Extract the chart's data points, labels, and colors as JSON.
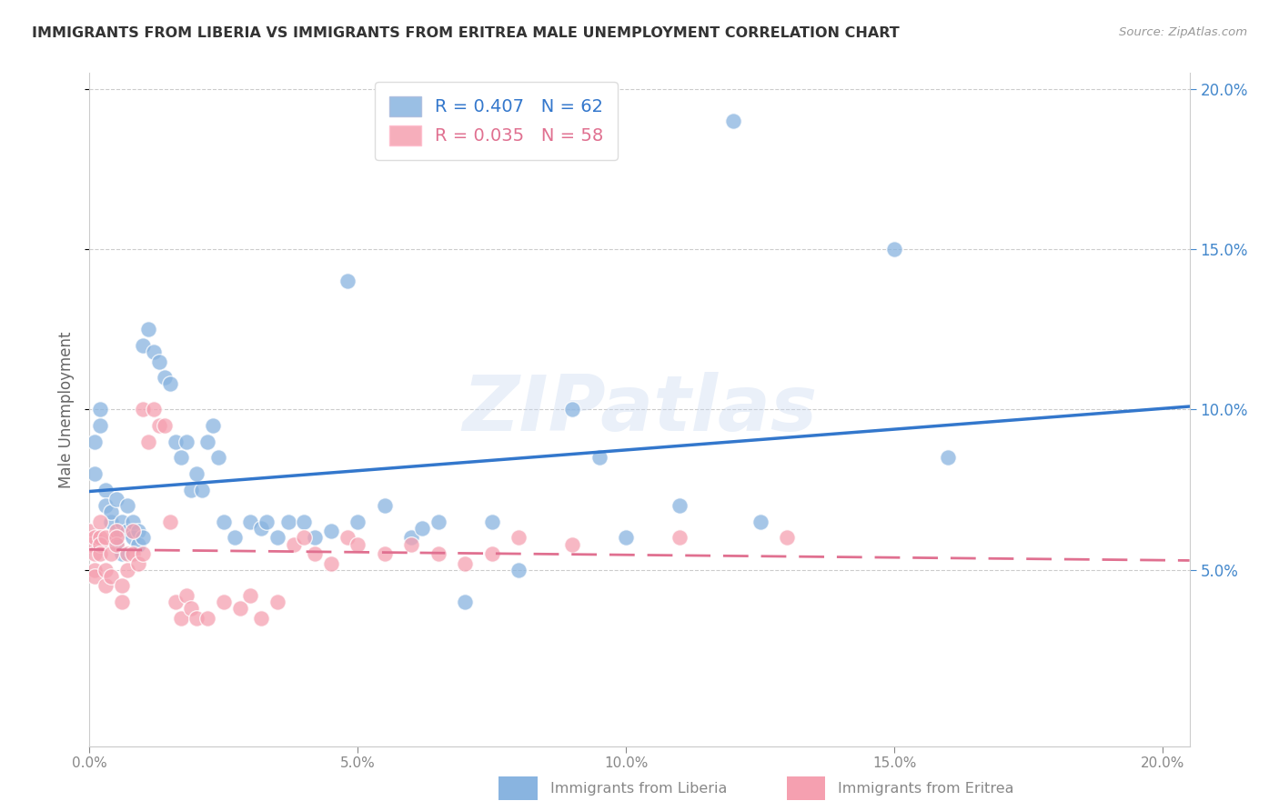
{
  "title": "IMMIGRANTS FROM LIBERIA VS IMMIGRANTS FROM ERITREA MALE UNEMPLOYMENT CORRELATION CHART",
  "source": "Source: ZipAtlas.com",
  "ylabel": "Male Unemployment",
  "xlim": [
    0.0,
    0.205
  ],
  "ylim": [
    -0.005,
    0.205
  ],
  "xtick_vals": [
    0.0,
    0.05,
    0.1,
    0.15,
    0.2
  ],
  "ytick_vals": [
    0.05,
    0.1,
    0.15,
    0.2
  ],
  "liberia_color": "#89B4E0",
  "liberia_line_color": "#3377CC",
  "eritrea_color": "#F5A0B0",
  "eritrea_line_color": "#E07090",
  "liberia_R": 0.407,
  "liberia_N": 62,
  "eritrea_R": 0.035,
  "eritrea_N": 58,
  "watermark": "ZIPatlas",
  "liberia_label": "Immigrants from Liberia",
  "eritrea_label": "Immigrants from Eritrea",
  "liberia_x": [
    0.001,
    0.001,
    0.002,
    0.002,
    0.003,
    0.003,
    0.004,
    0.004,
    0.005,
    0.005,
    0.005,
    0.006,
    0.006,
    0.007,
    0.007,
    0.008,
    0.008,
    0.009,
    0.009,
    0.01,
    0.01,
    0.011,
    0.012,
    0.013,
    0.014,
    0.015,
    0.016,
    0.017,
    0.018,
    0.019,
    0.02,
    0.021,
    0.022,
    0.023,
    0.024,
    0.025,
    0.027,
    0.03,
    0.032,
    0.033,
    0.035,
    0.037,
    0.04,
    0.042,
    0.045,
    0.048,
    0.05,
    0.055,
    0.06,
    0.062,
    0.065,
    0.07,
    0.075,
    0.08,
    0.09,
    0.095,
    0.1,
    0.11,
    0.12,
    0.125,
    0.15,
    0.16
  ],
  "liberia_y": [
    0.09,
    0.08,
    0.1,
    0.095,
    0.075,
    0.07,
    0.065,
    0.068,
    0.072,
    0.06,
    0.058,
    0.055,
    0.065,
    0.062,
    0.07,
    0.06,
    0.065,
    0.062,
    0.058,
    0.06,
    0.12,
    0.125,
    0.118,
    0.115,
    0.11,
    0.108,
    0.09,
    0.085,
    0.09,
    0.075,
    0.08,
    0.075,
    0.09,
    0.095,
    0.085,
    0.065,
    0.06,
    0.065,
    0.063,
    0.065,
    0.06,
    0.065,
    0.065,
    0.06,
    0.062,
    0.14,
    0.065,
    0.07,
    0.06,
    0.063,
    0.065,
    0.04,
    0.065,
    0.05,
    0.1,
    0.085,
    0.06,
    0.07,
    0.19,
    0.065,
    0.15,
    0.085
  ],
  "eritrea_x": [
    0.0,
    0.0,
    0.001,
    0.001,
    0.001,
    0.001,
    0.002,
    0.002,
    0.002,
    0.002,
    0.003,
    0.003,
    0.003,
    0.004,
    0.004,
    0.005,
    0.005,
    0.005,
    0.006,
    0.006,
    0.007,
    0.007,
    0.008,
    0.008,
    0.009,
    0.01,
    0.01,
    0.011,
    0.012,
    0.013,
    0.014,
    0.015,
    0.016,
    0.017,
    0.018,
    0.019,
    0.02,
    0.022,
    0.025,
    0.028,
    0.03,
    0.032,
    0.035,
    0.038,
    0.04,
    0.042,
    0.045,
    0.048,
    0.05,
    0.055,
    0.06,
    0.065,
    0.07,
    0.075,
    0.08,
    0.09,
    0.11,
    0.13
  ],
  "eritrea_y": [
    0.062,
    0.058,
    0.06,
    0.055,
    0.05,
    0.048,
    0.065,
    0.06,
    0.058,
    0.055,
    0.06,
    0.045,
    0.05,
    0.055,
    0.048,
    0.062,
    0.058,
    0.06,
    0.045,
    0.04,
    0.055,
    0.05,
    0.062,
    0.055,
    0.052,
    0.055,
    0.1,
    0.09,
    0.1,
    0.095,
    0.095,
    0.065,
    0.04,
    0.035,
    0.042,
    0.038,
    0.035,
    0.035,
    0.04,
    0.038,
    0.042,
    0.035,
    0.04,
    0.058,
    0.06,
    0.055,
    0.052,
    0.06,
    0.058,
    0.055,
    0.058,
    0.055,
    0.052,
    0.055,
    0.06,
    0.058,
    0.06,
    0.06
  ]
}
